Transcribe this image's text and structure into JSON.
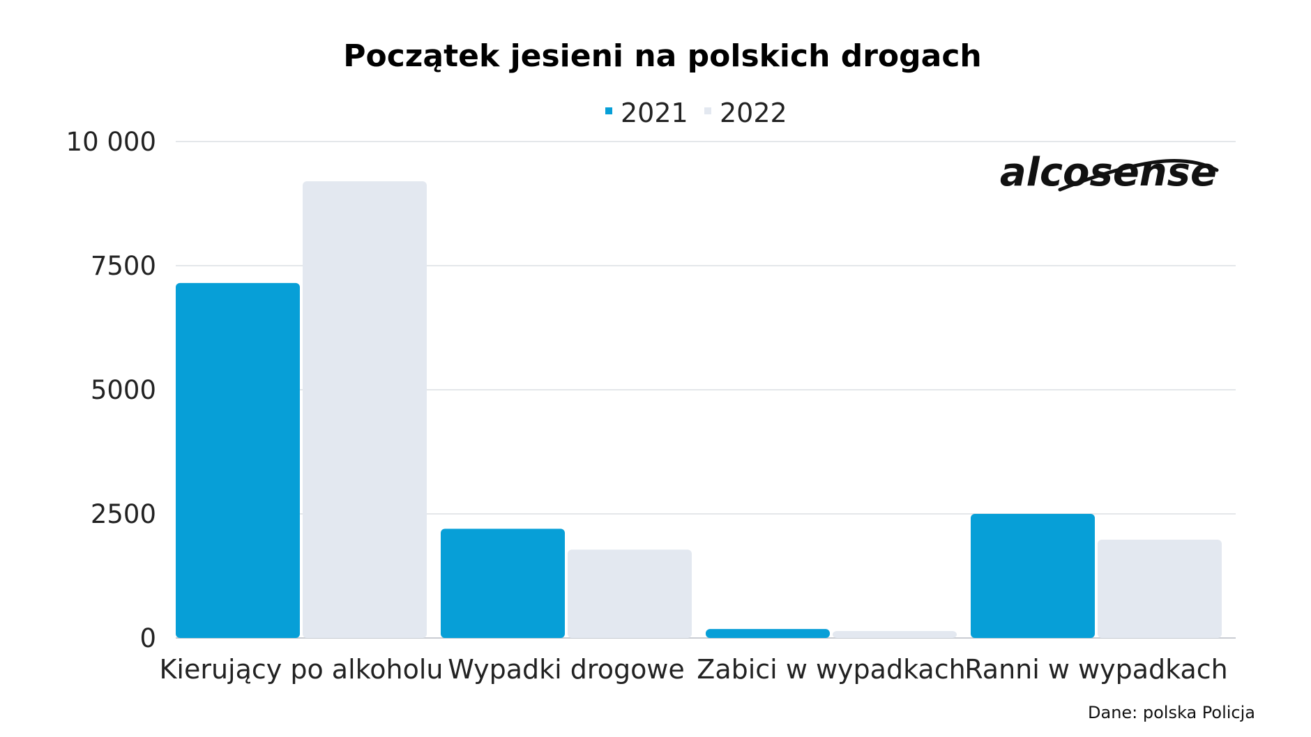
{
  "chart_data": {
    "type": "bar",
    "title": "Początek jesieni na polskich drogach",
    "xlabel": "",
    "ylabel": "",
    "categories": [
      "Kierujący po alkoholu",
      "Wypadki drogowe",
      "Zabici w wypadkach",
      "Ranni w wypadkach"
    ],
    "series": [
      {
        "name": "2021",
        "color": "#079fd7",
        "values": [
          7150,
          2200,
          180,
          2500
        ]
      },
      {
        "name": "2022",
        "color": "#e3e8f0",
        "values": [
          9200,
          1780,
          140,
          1980
        ]
      }
    ],
    "ylim": [
      0,
      10000
    ],
    "yticks": [
      0,
      2500,
      5000,
      7500,
      10000
    ],
    "ytick_labels": [
      "0",
      "2500",
      "5000",
      "7500",
      "10 000"
    ],
    "grid": true,
    "legend_position": "top-center",
    "gridline_color": "#dcdfe4"
  },
  "source_note": "Dane: polska Policja",
  "logo": {
    "text": "alcosense",
    "icon": "alcosense-logo"
  }
}
